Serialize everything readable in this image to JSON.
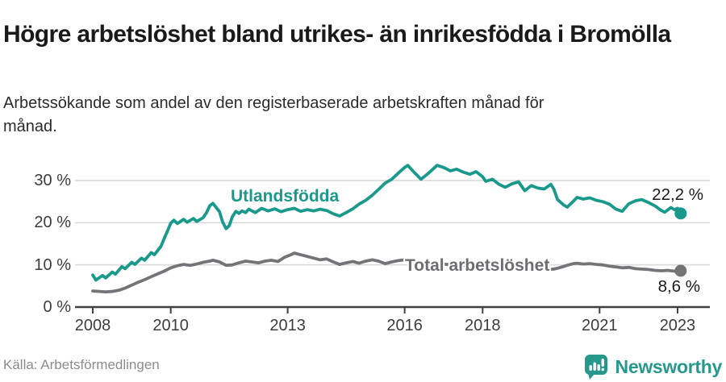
{
  "header": {
    "title": "Högre arbetslöshet bland utrikes- än inrikesfödda i Bromölla",
    "subtitle": "Arbetssökande som andel av den registerbaserade arbetskraften månad för månad."
  },
  "footer": {
    "source": "Källa: Arbetsförmedlingen",
    "brand": "Newsworthy"
  },
  "colors": {
    "foreign_born_line": "#18998b",
    "total_line": "#747478",
    "grid": "#d9d9d9",
    "axis": "#404040",
    "brand_teal": "#26988c"
  },
  "chart_data": {
    "type": "line",
    "title": "Högre arbetslöshet bland utrikes- än inrikesfödda i Bromölla",
    "xlabel": "",
    "ylabel": "Arbetssökande som andel av den registerbaserade arbetskraften",
    "unit": "%",
    "ylim": [
      0,
      35
    ],
    "xlim": [
      2007.6,
      2023.8
    ],
    "grid": "horizontal",
    "legend_position": "inline-labels",
    "y_ticks": [
      {
        "label": "30 %",
        "value": 30
      },
      {
        "label": "20 %",
        "value": 20
      },
      {
        "label": "10 %",
        "value": 10
      },
      {
        "label": "0 %",
        "value": 0
      }
    ],
    "x_ticks": [
      {
        "label": "2008",
        "year": 2008
      },
      {
        "label": "2010",
        "year": 2010
      },
      {
        "label": "2013",
        "year": 2013
      },
      {
        "label": "2016",
        "year": 2016
      },
      {
        "label": "2018",
        "year": 2018
      },
      {
        "label": "2021",
        "year": 2021
      },
      {
        "label": "2023",
        "year": 2023
      }
    ],
    "series": [
      {
        "name": "Utlandsfödda",
        "color": "#18998b",
        "end_label": "22,2 %",
        "end_value": 22.2,
        "points": [
          [
            2008.0,
            7.6
          ],
          [
            2008.08,
            6.4
          ],
          [
            2008.25,
            7.5
          ],
          [
            2008.33,
            6.9
          ],
          [
            2008.5,
            8.3
          ],
          [
            2008.58,
            7.8
          ],
          [
            2008.75,
            9.6
          ],
          [
            2008.83,
            9.1
          ],
          [
            2009.0,
            10.6
          ],
          [
            2009.08,
            10.1
          ],
          [
            2009.25,
            11.6
          ],
          [
            2009.33,
            11.1
          ],
          [
            2009.5,
            12.9
          ],
          [
            2009.58,
            12.4
          ],
          [
            2009.75,
            14.4
          ],
          [
            2009.83,
            16.2
          ],
          [
            2009.92,
            18.1
          ],
          [
            2010.0,
            19.9
          ],
          [
            2010.08,
            20.6
          ],
          [
            2010.17,
            19.8
          ],
          [
            2010.33,
            20.8
          ],
          [
            2010.42,
            20.1
          ],
          [
            2010.58,
            21.0
          ],
          [
            2010.67,
            20.3
          ],
          [
            2010.83,
            21.2
          ],
          [
            2010.92,
            22.4
          ],
          [
            2011.0,
            24.0
          ],
          [
            2011.08,
            24.6
          ],
          [
            2011.25,
            22.6
          ],
          [
            2011.33,
            20.2
          ],
          [
            2011.42,
            18.6
          ],
          [
            2011.5,
            19.3
          ],
          [
            2011.58,
            21.4
          ],
          [
            2011.67,
            22.7
          ],
          [
            2011.75,
            22.2
          ],
          [
            2011.83,
            22.8
          ],
          [
            2011.92,
            22.4
          ],
          [
            2012.0,
            23.2
          ],
          [
            2012.17,
            22.4
          ],
          [
            2012.33,
            23.4
          ],
          [
            2012.5,
            22.8
          ],
          [
            2012.67,
            23.3
          ],
          [
            2012.83,
            22.6
          ],
          [
            2013.0,
            23.1
          ],
          [
            2013.17,
            23.4
          ],
          [
            2013.33,
            22.7
          ],
          [
            2013.5,
            23.1
          ],
          [
            2013.67,
            22.8
          ],
          [
            2013.83,
            23.2
          ],
          [
            2014.0,
            22.9
          ],
          [
            2014.17,
            22.1
          ],
          [
            2014.33,
            21.6
          ],
          [
            2014.5,
            22.4
          ],
          [
            2014.67,
            23.3
          ],
          [
            2014.83,
            24.4
          ],
          [
            2015.0,
            25.3
          ],
          [
            2015.17,
            26.5
          ],
          [
            2015.33,
            27.9
          ],
          [
            2015.5,
            29.4
          ],
          [
            2015.67,
            30.3
          ],
          [
            2015.83,
            31.7
          ],
          [
            2016.0,
            33.1
          ],
          [
            2016.08,
            33.6
          ],
          [
            2016.25,
            31.9
          ],
          [
            2016.42,
            30.3
          ],
          [
            2016.58,
            31.5
          ],
          [
            2016.75,
            32.9
          ],
          [
            2016.83,
            33.6
          ],
          [
            2017.0,
            33.1
          ],
          [
            2017.17,
            32.3
          ],
          [
            2017.33,
            32.7
          ],
          [
            2017.5,
            32.0
          ],
          [
            2017.67,
            31.5
          ],
          [
            2017.83,
            32.1
          ],
          [
            2018.0,
            30.9
          ],
          [
            2018.08,
            29.8
          ],
          [
            2018.25,
            30.3
          ],
          [
            2018.42,
            29.1
          ],
          [
            2018.58,
            28.4
          ],
          [
            2018.75,
            29.2
          ],
          [
            2018.92,
            29.7
          ],
          [
            2019.08,
            27.6
          ],
          [
            2019.25,
            28.8
          ],
          [
            2019.42,
            28.2
          ],
          [
            2019.58,
            28.0
          ],
          [
            2019.75,
            29.1
          ],
          [
            2019.83,
            27.9
          ],
          [
            2019.92,
            25.5
          ],
          [
            2020.08,
            24.2
          ],
          [
            2020.17,
            23.7
          ],
          [
            2020.33,
            25.1
          ],
          [
            2020.42,
            26.0
          ],
          [
            2020.58,
            25.6
          ],
          [
            2020.75,
            25.9
          ],
          [
            2020.92,
            25.3
          ],
          [
            2021.08,
            25.0
          ],
          [
            2021.25,
            24.4
          ],
          [
            2021.42,
            23.2
          ],
          [
            2021.58,
            22.7
          ],
          [
            2021.75,
            24.5
          ],
          [
            2021.92,
            25.2
          ],
          [
            2022.08,
            25.5
          ],
          [
            2022.25,
            24.8
          ],
          [
            2022.42,
            24.0
          ],
          [
            2022.58,
            22.9
          ],
          [
            2022.67,
            22.5
          ],
          [
            2022.83,
            23.6
          ],
          [
            2022.92,
            23.1
          ],
          [
            2023.0,
            23.4
          ],
          [
            2023.08,
            22.2
          ]
        ]
      },
      {
        "name": "Total arbetslöshet",
        "color": "#747478",
        "end_label": "8,6 %",
        "end_value": 8.6,
        "points": [
          [
            2008.0,
            3.8
          ],
          [
            2008.17,
            3.7
          ],
          [
            2008.33,
            3.6
          ],
          [
            2008.5,
            3.7
          ],
          [
            2008.67,
            4.0
          ],
          [
            2008.83,
            4.5
          ],
          [
            2009.0,
            5.2
          ],
          [
            2009.17,
            5.9
          ],
          [
            2009.33,
            6.5
          ],
          [
            2009.5,
            7.2
          ],
          [
            2009.67,
            7.9
          ],
          [
            2009.83,
            8.5
          ],
          [
            2010.0,
            9.3
          ],
          [
            2010.17,
            9.8
          ],
          [
            2010.33,
            10.1
          ],
          [
            2010.5,
            9.9
          ],
          [
            2010.67,
            10.2
          ],
          [
            2010.83,
            10.6
          ],
          [
            2011.0,
            10.9
          ],
          [
            2011.08,
            11.1
          ],
          [
            2011.25,
            10.7
          ],
          [
            2011.42,
            9.9
          ],
          [
            2011.58,
            10.0
          ],
          [
            2011.75,
            10.5
          ],
          [
            2011.92,
            10.9
          ],
          [
            2012.08,
            10.7
          ],
          [
            2012.25,
            10.5
          ],
          [
            2012.42,
            10.9
          ],
          [
            2012.58,
            11.1
          ],
          [
            2012.75,
            10.8
          ],
          [
            2012.92,
            11.8
          ],
          [
            2013.08,
            12.4
          ],
          [
            2013.17,
            12.8
          ],
          [
            2013.33,
            12.4
          ],
          [
            2013.5,
            12.0
          ],
          [
            2013.67,
            11.6
          ],
          [
            2013.83,
            11.2
          ],
          [
            2014.0,
            11.4
          ],
          [
            2014.17,
            10.7
          ],
          [
            2014.33,
            10.1
          ],
          [
            2014.5,
            10.5
          ],
          [
            2014.67,
            10.8
          ],
          [
            2014.83,
            10.4
          ],
          [
            2015.0,
            10.9
          ],
          [
            2015.17,
            11.2
          ],
          [
            2015.33,
            10.9
          ],
          [
            2015.5,
            10.3
          ],
          [
            2015.67,
            10.7
          ],
          [
            2015.83,
            11.0
          ],
          [
            2016.0,
            11.2
          ],
          [
            2016.17,
            10.9
          ],
          [
            2016.33,
            10.6
          ],
          [
            2016.5,
            10.5
          ],
          [
            2016.67,
            10.7
          ],
          [
            2016.83,
            10.4
          ],
          [
            2017.0,
            10.2
          ],
          [
            2017.17,
            10.0
          ],
          [
            2017.33,
            10.3
          ],
          [
            2017.5,
            9.9
          ],
          [
            2017.67,
            9.7
          ],
          [
            2017.83,
            9.9
          ],
          [
            2018.0,
            9.6
          ],
          [
            2018.17,
            9.4
          ],
          [
            2018.33,
            9.6
          ],
          [
            2018.5,
            9.3
          ],
          [
            2018.67,
            9.1
          ],
          [
            2018.83,
            9.3
          ],
          [
            2019.0,
            9.0
          ],
          [
            2019.17,
            8.9
          ],
          [
            2019.33,
            9.1
          ],
          [
            2019.5,
            8.8
          ],
          [
            2019.67,
            8.9
          ],
          [
            2019.83,
            9.0
          ],
          [
            2020.0,
            9.4
          ],
          [
            2020.17,
            9.9
          ],
          [
            2020.33,
            10.3
          ],
          [
            2020.42,
            10.4
          ],
          [
            2020.58,
            10.2
          ],
          [
            2020.75,
            10.3
          ],
          [
            2020.92,
            10.1
          ],
          [
            2021.08,
            10.0
          ],
          [
            2021.25,
            9.7
          ],
          [
            2021.42,
            9.5
          ],
          [
            2021.58,
            9.3
          ],
          [
            2021.75,
            9.4
          ],
          [
            2021.92,
            9.1
          ],
          [
            2022.08,
            9.0
          ],
          [
            2022.25,
            8.9
          ],
          [
            2022.42,
            8.7
          ],
          [
            2022.58,
            8.6
          ],
          [
            2022.75,
            8.7
          ],
          [
            2022.92,
            8.5
          ],
          [
            2023.0,
            8.5
          ],
          [
            2023.08,
            8.6
          ]
        ]
      }
    ]
  }
}
